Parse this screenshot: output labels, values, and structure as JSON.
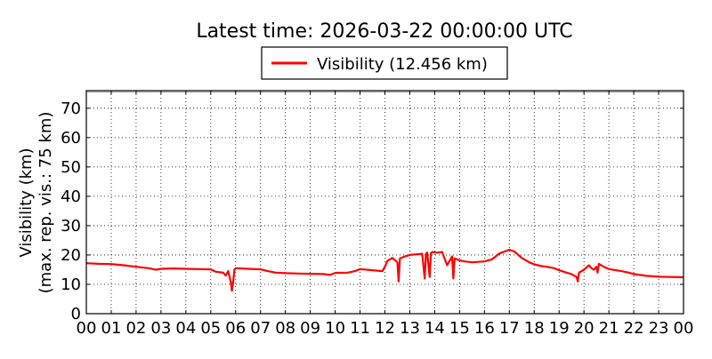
{
  "chart_data": {
    "type": "line",
    "title": "Latest time: 2026-03-22 00:00:00 UTC",
    "ylabel_line1": "Visibility (km)",
    "ylabel_line2": "(max. rep. vis.: 75 km)",
    "xlabel": "",
    "xlim": [
      0,
      24
    ],
    "ylim": [
      0,
      76
    ],
    "grid": true,
    "legend_position": "top-center",
    "x_ticks": [
      "00",
      "01",
      "02",
      "03",
      "04",
      "05",
      "06",
      "07",
      "08",
      "09",
      "10",
      "11",
      "12",
      "13",
      "14",
      "15",
      "16",
      "17",
      "18",
      "19",
      "20",
      "21",
      "22",
      "23",
      "00"
    ],
    "y_ticks": [
      0,
      10,
      20,
      30,
      40,
      50,
      60,
      70
    ],
    "series": [
      {
        "name": "Visibility (12.456 km)",
        "color": "#ff0000",
        "x": [
          0,
          0.5,
          1.0,
          1.5,
          2.0,
          2.5,
          2.8,
          3.0,
          3.5,
          4.0,
          4.5,
          5.0,
          5.2,
          5.5,
          5.6,
          5.7,
          5.8,
          5.85,
          5.9,
          5.95,
          6.0,
          6.5,
          7.0,
          7.3,
          7.6,
          8.0,
          8.5,
          9.0,
          9.5,
          9.8,
          10.0,
          10.5,
          10.8,
          11.0,
          11.5,
          11.9,
          12.0,
          12.1,
          12.3,
          12.5,
          12.55,
          12.6,
          12.8,
          13.0,
          13.2,
          13.5,
          13.6,
          13.65,
          13.7,
          13.8,
          13.85,
          13.9,
          14.1,
          14.3,
          14.5,
          14.7,
          14.75,
          14.8,
          14.9,
          15.0,
          15.2,
          15.5,
          16.0,
          16.3,
          16.6,
          17.0,
          17.2,
          17.5,
          17.8,
          18.0,
          18.3,
          18.5,
          18.8,
          19.0,
          19.3,
          19.5,
          19.7,
          19.75,
          19.8,
          20.0,
          20.2,
          20.3,
          20.4,
          20.5,
          20.55,
          20.6,
          20.8,
          21.0,
          21.5,
          21.8,
          22.0,
          22.5,
          23.0,
          23.5,
          24.0
        ],
        "y": [
          17.2,
          17.0,
          16.9,
          16.5,
          16.0,
          15.5,
          15.0,
          15.3,
          15.4,
          15.3,
          15.2,
          15.1,
          14.3,
          14.0,
          13.0,
          14.5,
          11.0,
          7.8,
          10.8,
          15.0,
          15.5,
          15.3,
          15.1,
          14.5,
          14.0,
          13.8,
          13.7,
          13.6,
          13.5,
          13.2,
          13.9,
          14.0,
          14.5,
          15.2,
          14.8,
          14.5,
          16.0,
          18.0,
          19.0,
          17.5,
          11.0,
          18.8,
          19.5,
          20.0,
          20.2,
          20.4,
          12.0,
          20.4,
          20.8,
          12.5,
          20.6,
          21.0,
          20.8,
          21.0,
          16.5,
          19.5,
          12.0,
          18.8,
          18.5,
          18.2,
          17.8,
          17.5,
          17.8,
          18.5,
          20.5,
          21.8,
          21.2,
          19.0,
          17.5,
          16.8,
          16.2,
          16.0,
          15.5,
          14.8,
          14.0,
          13.5,
          12.5,
          11.0,
          14.0,
          15.0,
          16.5,
          15.5,
          15.0,
          16.0,
          14.0,
          17.0,
          16.0,
          15.2,
          14.5,
          14.0,
          13.5,
          12.9,
          12.6,
          12.5,
          12.4
        ]
      }
    ]
  }
}
